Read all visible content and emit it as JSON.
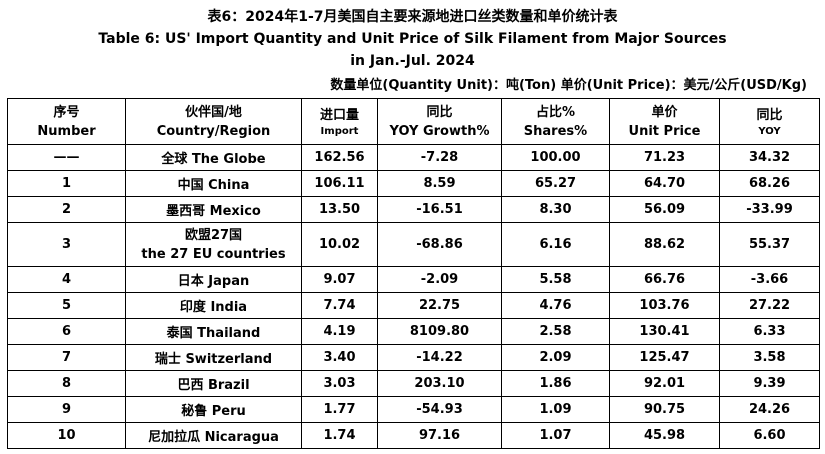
{
  "title": {
    "zh": "表6：2024年1-7月美国自主要来源地进口丝类数量和单价统计表",
    "en_line1": "Table 6: US' Import Quantity and Unit Price of Silk Filament from Major Sources",
    "en_line2": "in Jan.-Jul. 2024"
  },
  "unit_note": "数量单位(Quantity Unit)：吨(Ton)   单价(Unit Price)：美元/公斤(USD/Kg)",
  "headers": {
    "no_zh": "序号",
    "no_en": "Number",
    "country_zh": "伙伴国/地",
    "country_en": "Country/Region",
    "qty_zh": "进口量",
    "qty_en": "Import",
    "yoy1_zh": "同比",
    "yoy1_en": "YOY Growth%",
    "share_zh": "占比%",
    "share_en": "Shares%",
    "price_zh": "单价",
    "price_en": "Unit Price",
    "yoy2_zh": "同比",
    "yoy2_en": "YOY"
  },
  "rows": [
    {
      "no": "——",
      "country": "全球 The Globe",
      "qty": "162.56",
      "yoy": "-7.28",
      "share": "100.00",
      "price": "71.23",
      "yoy2": "34.32"
    },
    {
      "no": "1",
      "country": "中国 China",
      "qty": "106.11",
      "yoy": "8.59",
      "share": "65.27",
      "price": "64.70",
      "yoy2": "68.26"
    },
    {
      "no": "2",
      "country": "墨西哥 Mexico",
      "qty": "13.50",
      "yoy": "-16.51",
      "share": "8.30",
      "price": "56.09",
      "yoy2": "-33.99"
    },
    {
      "no": "3",
      "country": "欧盟27国",
      "country2": "the 27 EU countries",
      "qty": "10.02",
      "yoy": "-68.86",
      "share": "6.16",
      "price": "88.62",
      "yoy2": "55.37"
    },
    {
      "no": "4",
      "country": "日本 Japan",
      "qty": "9.07",
      "yoy": "-2.09",
      "share": "5.58",
      "price": "66.76",
      "yoy2": "-3.66"
    },
    {
      "no": "5",
      "country": "印度 India",
      "qty": "7.74",
      "yoy": "22.75",
      "share": "4.76",
      "price": "103.76",
      "yoy2": "27.22"
    },
    {
      "no": "6",
      "country": "泰国 Thailand",
      "qty": "4.19",
      "yoy": "8109.80",
      "share": "2.58",
      "price": "130.41",
      "yoy2": "6.33"
    },
    {
      "no": "7",
      "country": "瑞士 Switzerland",
      "qty": "3.40",
      "yoy": "-14.22",
      "share": "2.09",
      "price": "125.47",
      "yoy2": "3.58"
    },
    {
      "no": "8",
      "country": "巴西 Brazil",
      "qty": "3.03",
      "yoy": "203.10",
      "share": "1.86",
      "price": "92.01",
      "yoy2": "9.39"
    },
    {
      "no": "9",
      "country": "秘鲁 Peru",
      "qty": "1.77",
      "yoy": "-54.93",
      "share": "1.09",
      "price": "90.75",
      "yoy2": "24.26"
    },
    {
      "no": "10",
      "country": "尼加拉瓜 Nicaragua",
      "qty": "1.74",
      "yoy": "97.16",
      "share": "1.07",
      "price": "45.98",
      "yoy2": "6.60"
    }
  ]
}
